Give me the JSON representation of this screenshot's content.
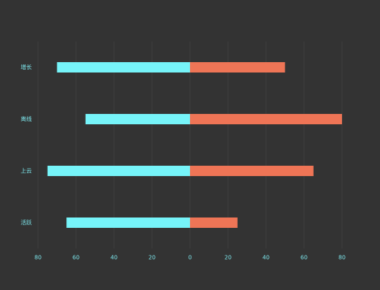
{
  "chart_data": {
    "type": "bar",
    "orientation": "horizontal",
    "categories": [
      "增长",
      "离线",
      "上云",
      "活跃"
    ],
    "series": [
      {
        "color": "#76f4f9",
        "values": [
          -70,
          -55,
          -75,
          -65
        ]
      },
      {
        "color": "#ef7556",
        "values": [
          50,
          80,
          65,
          25
        ]
      }
    ],
    "xlim": [
      -80,
      80
    ],
    "xticks": [
      {
        "value": -80,
        "label": "80"
      },
      {
        "value": -60,
        "label": "60"
      },
      {
        "value": -40,
        "label": "40"
      },
      {
        "value": -20,
        "label": "20"
      },
      0,
      20,
      40,
      60,
      80
    ],
    "grid": true
  }
}
